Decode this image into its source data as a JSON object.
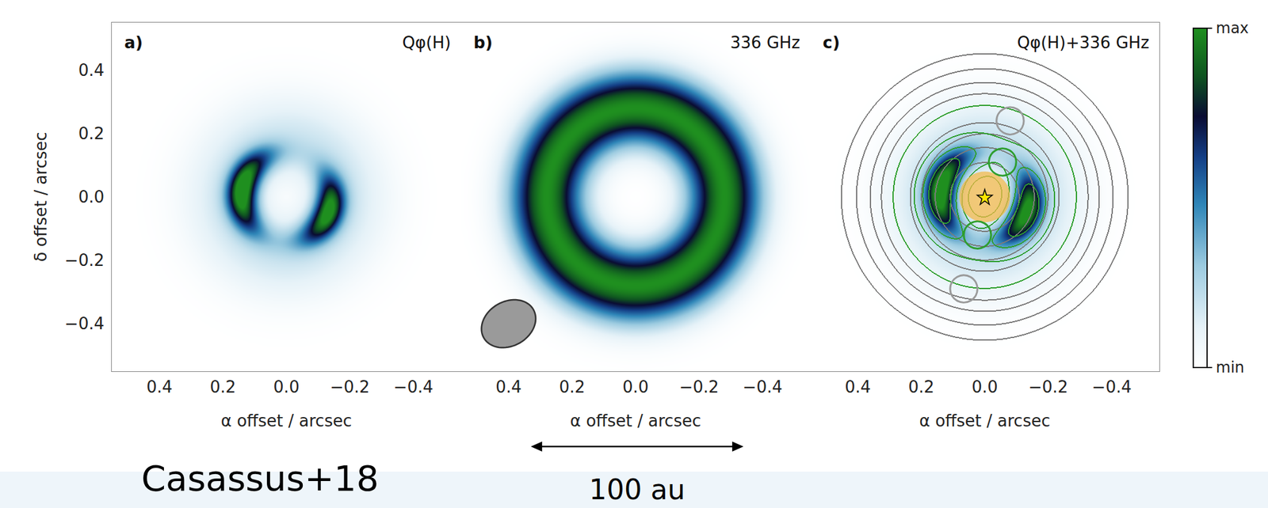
{
  "chart_data": [
    {
      "type": "image",
      "panel": "a)",
      "title": "Qφ(H)",
      "xlabel": "α offset / arcsec",
      "ylabel": "δ offset / arcsec",
      "xlim": [
        0.55,
        -0.55
      ],
      "ylim": [
        -0.55,
        0.55
      ],
      "xticks": [
        0.4,
        0.2,
        {
          "value": 0,
          "label": "0.0"
        },
        {
          "value": -0.2,
          "label": "−0.2"
        },
        {
          "value": -0.4,
          "label": "−0.4"
        }
      ],
      "yticks": [
        0.4,
        0.2,
        {
          "value": 0,
          "label": "0.0"
        },
        {
          "value": -0.2,
          "label": "−0.2"
        },
        {
          "value": -0.4,
          "label": "−0.4"
        }
      ],
      "image": {
        "components": [
          {
            "shape": "arc",
            "radius": 0.14,
            "width": 0.032,
            "pa": 80,
            "pa_width": 40,
            "peak": 1.0
          },
          {
            "shape": "arc",
            "radius": 0.14,
            "width": 0.032,
            "pa": 250,
            "pa_width": 35,
            "peak": 0.92
          },
          {
            "shape": "ring",
            "radius": 0.18,
            "width": 0.1,
            "peak": 0.18
          }
        ]
      }
    },
    {
      "type": "image",
      "panel": "b)",
      "title": "336 GHz",
      "xlabel": "α offset / arcsec",
      "xlim": [
        0.55,
        -0.55
      ],
      "ylim": [
        -0.55,
        0.55
      ],
      "xticks": [
        0.4,
        0.2,
        {
          "value": 0,
          "label": "0.0"
        },
        {
          "value": -0.2,
          "label": "−0.2"
        },
        {
          "value": -0.4,
          "label": "−0.4"
        }
      ],
      "yticks": [
        0.4,
        0.2,
        {
          "value": 0,
          "label": "0.0"
        },
        {
          "value": -0.2,
          "label": "−0.2"
        },
        {
          "value": -0.4,
          "label": "−0.4"
        }
      ],
      "tick_labels": "x",
      "image": {
        "components": [
          {
            "shape": "ring",
            "radius": 0.28,
            "width": 0.08,
            "peak": 1.0
          }
        ]
      },
      "beam": {
        "center": [
          0.4,
          -0.4
        ],
        "major": 0.18,
        "minor": 0.14,
        "pa": 300
      }
    },
    {
      "type": "image",
      "panel": "c)",
      "title": "Qφ(H)+336 GHz",
      "xlabel": "α offset / arcsec",
      "xlim": [
        0.55,
        -0.55
      ],
      "ylim": [
        -0.55,
        0.55
      ],
      "xticks": [
        0.4,
        0.2,
        {
          "value": 0,
          "label": "0.0"
        },
        {
          "value": -0.2,
          "label": "−0.2"
        },
        {
          "value": -0.4,
          "label": "−0.4"
        }
      ],
      "yticks": [
        0.4,
        0.2,
        {
          "value": 0,
          "label": "0.0"
        },
        {
          "value": -0.2,
          "label": "−0.2"
        },
        {
          "value": -0.4,
          "label": "−0.4"
        }
      ],
      "tick_labels": "x",
      "image": "Qφ(H)",
      "contours": [
        {
          "of": "336 GHz",
          "levels": [
            0.1,
            0.3,
            0.6,
            0.85
          ],
          "color": "#7a7a7a"
        },
        {
          "of": "Qφ(H)",
          "levels": [
            0.1,
            0.2,
            0.4,
            0.7
          ],
          "color": "#2e9e2e"
        }
      ],
      "mask": {
        "radius": 0.08,
        "color": "#f2b84b"
      },
      "star": {
        "x": 0,
        "y": 0,
        "marker": "star"
      },
      "circles": [
        {
          "x": -0.08,
          "y": 0.24,
          "radius": 0.043,
          "color": "#9a9a9a"
        },
        {
          "x": 0.066,
          "y": -0.29,
          "radius": 0.043,
          "color": "#9a9a9a"
        },
        {
          "x": -0.056,
          "y": 0.11,
          "radius": 0.043,
          "color": "#2e9e2e"
        },
        {
          "x": 0.023,
          "y": -0.12,
          "radius": 0.043,
          "color": "#2e9e2e"
        }
      ]
    }
  ],
  "colorbar": {
    "range": [
      0,
      1
    ],
    "ticks": [
      {
        "value": 1,
        "label": "max"
      },
      {
        "value": 0,
        "label": "min"
      }
    ]
  },
  "credit": "Casassus+18",
  "scale_bar": {
    "label": "100 au",
    "x": [
      0.33,
      -0.34
    ]
  }
}
